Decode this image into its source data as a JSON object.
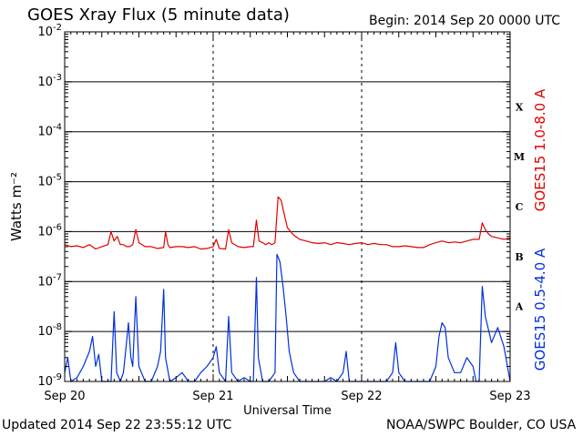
{
  "header": {
    "title": "GOES Xray Flux (5 minute data)",
    "begin": "Begin:  2014 Sep 20 0000 UTC"
  },
  "footer": {
    "updated": "Updated 2014 Sep 22 23:55:12 UTC",
    "credit": "NOAA/SWPC Boulder, CO USA"
  },
  "chart_data": {
    "type": "line",
    "title": "GOES Xray Flux (5 minute data)",
    "xlabel": "Universal Time",
    "ylabel": "Watts m⁻²",
    "yscale": "log",
    "ylim": [
      1e-09,
      0.01
    ],
    "xlim": [
      0,
      72
    ],
    "x_unit": "hours since 2014 Sep 20 0000 UTC",
    "x_ticks": [
      {
        "value": 0,
        "label": "Sep 20"
      },
      {
        "value": 24,
        "label": "Sep 21"
      },
      {
        "value": 48,
        "label": "Sep 22"
      },
      {
        "value": 72,
        "label": "Sep 23"
      }
    ],
    "y_ticks": [
      {
        "value": 1e-09,
        "base": "10",
        "exp": "-9"
      },
      {
        "value": 1e-08,
        "base": "10",
        "exp": "-8"
      },
      {
        "value": 1e-07,
        "base": "10",
        "exp": "-7"
      },
      {
        "value": 1e-06,
        "base": "10",
        "exp": "-6"
      },
      {
        "value": 1e-05,
        "base": "10",
        "exp": "-5"
      },
      {
        "value": 0.0001,
        "base": "10",
        "exp": "-4"
      },
      {
        "value": 0.001,
        "base": "10",
        "exp": "-3"
      },
      {
        "value": 0.01,
        "base": "10",
        "exp": "-2"
      }
    ],
    "flare_classes": [
      {
        "label": "A",
        "min": 1e-08,
        "max": 1e-07
      },
      {
        "label": "B",
        "min": 1e-07,
        "max": 1e-06
      },
      {
        "label": "C",
        "min": 1e-06,
        "max": 1e-05
      },
      {
        "label": "M",
        "min": 1e-05,
        "max": 0.0001
      },
      {
        "label": "X",
        "min": 0.0001,
        "max": 0.001
      }
    ],
    "grid": true,
    "series": [
      {
        "name": "GOES15 1.0-8.0 A",
        "color": "#e00000",
        "points": [
          [
            0,
            5.5e-07
          ],
          [
            1,
            5e-07
          ],
          [
            2,
            5.2e-07
          ],
          [
            3,
            4.8e-07
          ],
          [
            4,
            5.5e-07
          ],
          [
            5,
            4.5e-07
          ],
          [
            6,
            5e-07
          ],
          [
            7,
            5.5e-07
          ],
          [
            7.5,
            1e-06
          ],
          [
            8,
            6.5e-07
          ],
          [
            8.5,
            8e-07
          ],
          [
            9,
            5.5e-07
          ],
          [
            9.5,
            5.5e-07
          ],
          [
            10,
            5e-07
          ],
          [
            10.5,
            5e-07
          ],
          [
            11,
            5.5e-07
          ],
          [
            11.5,
            1.1e-06
          ],
          [
            12,
            6e-07
          ],
          [
            13,
            5e-07
          ],
          [
            14,
            5e-07
          ],
          [
            15,
            4.6e-07
          ],
          [
            16,
            4.8e-07
          ],
          [
            16.3,
            1e-06
          ],
          [
            16.7,
            5.5e-07
          ],
          [
            17,
            4.8e-07
          ],
          [
            18,
            5e-07
          ],
          [
            19,
            5e-07
          ],
          [
            20,
            4.8e-07
          ],
          [
            21,
            5e-07
          ],
          [
            22,
            4.5e-07
          ],
          [
            23,
            4.6e-07
          ],
          [
            24,
            5e-07
          ],
          [
            24.5,
            7e-07
          ],
          [
            25,
            4.6e-07
          ],
          [
            26,
            4.5e-07
          ],
          [
            26.5,
            1.1e-06
          ],
          [
            27,
            6e-07
          ],
          [
            28,
            5e-07
          ],
          [
            29,
            4.8e-07
          ],
          [
            30,
            5e-07
          ],
          [
            30.5,
            5e-07
          ],
          [
            31,
            1.7e-06
          ],
          [
            31.4,
            6.5e-07
          ],
          [
            32,
            6e-07
          ],
          [
            32.5,
            5.5e-07
          ],
          [
            33,
            6e-07
          ],
          [
            33.5,
            5.5e-07
          ],
          [
            34,
            6e-07
          ],
          [
            34.5,
            5e-06
          ],
          [
            35,
            4.2e-06
          ],
          [
            35.5,
            2.2e-06
          ],
          [
            36,
            1.2e-06
          ],
          [
            37,
            8.5e-07
          ],
          [
            38,
            7e-07
          ],
          [
            39,
            6.5e-07
          ],
          [
            40,
            6e-07
          ],
          [
            41,
            5.8e-07
          ],
          [
            42,
            6e-07
          ],
          [
            43,
            5.5e-07
          ],
          [
            44,
            6e-07
          ],
          [
            45,
            5.8e-07
          ],
          [
            46,
            5.5e-07
          ],
          [
            47,
            5.8e-07
          ],
          [
            48,
            6e-07
          ],
          [
            49,
            5.5e-07
          ],
          [
            50,
            5.8e-07
          ],
          [
            51,
            5.5e-07
          ],
          [
            52,
            5.5e-07
          ],
          [
            53,
            5e-07
          ],
          [
            54,
            5e-07
          ],
          [
            55,
            5.2e-07
          ],
          [
            56,
            5e-07
          ],
          [
            57,
            4.8e-07
          ],
          [
            58,
            4.8e-07
          ],
          [
            59,
            5.5e-07
          ],
          [
            60,
            6e-07
          ],
          [
            61,
            6.5e-07
          ],
          [
            62,
            6e-07
          ],
          [
            63,
            6.2e-07
          ],
          [
            64,
            6e-07
          ],
          [
            65,
            6.5e-07
          ],
          [
            66,
            7e-07
          ],
          [
            67,
            7e-07
          ],
          [
            67.5,
            1.5e-06
          ],
          [
            68,
            1.1e-06
          ],
          [
            68.5,
            9e-07
          ],
          [
            69,
            8e-07
          ],
          [
            70,
            7.5e-07
          ],
          [
            71,
            7e-07
          ],
          [
            72,
            7.5e-07
          ]
        ]
      },
      {
        "name": "GOES15 0.5-4.0 A",
        "color": "#0030e0",
        "points": [
          [
            0,
            1.5e-09
          ],
          [
            0.5,
            3e-09
          ],
          [
            1,
            1e-09
          ],
          [
            2,
            1.2e-09
          ],
          [
            3,
            2e-09
          ],
          [
            4,
            4e-09
          ],
          [
            4.5,
            8e-09
          ],
          [
            5,
            2e-09
          ],
          [
            5.5,
            3.5e-09
          ],
          [
            6,
            1e-09
          ],
          [
            7,
            1e-09
          ],
          [
            7.5,
            1e-09
          ],
          [
            8,
            2.5e-08
          ],
          [
            8.4,
            1.5e-09
          ],
          [
            9,
            1e-09
          ],
          [
            9.5,
            1.5e-09
          ],
          [
            10,
            6e-09
          ],
          [
            10.3,
            1.5e-08
          ],
          [
            10.7,
            3e-09
          ],
          [
            11,
            2e-09
          ],
          [
            11.5,
            5e-08
          ],
          [
            12,
            2e-09
          ],
          [
            13,
            1e-09
          ],
          [
            14,
            1e-09
          ],
          [
            15,
            2e-09
          ],
          [
            15.5,
            4e-09
          ],
          [
            16,
            7e-08
          ],
          [
            16.3,
            3e-09
          ],
          [
            17,
            1e-09
          ],
          [
            18,
            1.2e-09
          ],
          [
            19,
            1.5e-09
          ],
          [
            20,
            1e-09
          ],
          [
            21,
            1e-09
          ],
          [
            22,
            1.5e-09
          ],
          [
            23,
            2e-09
          ],
          [
            24,
            3e-09
          ],
          [
            24.5,
            5e-09
          ],
          [
            25,
            1.5e-09
          ],
          [
            26,
            1e-09
          ],
          [
            26.5,
            2e-08
          ],
          [
            27,
            1.5e-09
          ],
          [
            28,
            1e-09
          ],
          [
            29,
            1.2e-09
          ],
          [
            30,
            1e-09
          ],
          [
            30.5,
            1e-09
          ],
          [
            31,
            1.2e-07
          ],
          [
            31.3,
            3e-09
          ],
          [
            32,
            1e-09
          ],
          [
            33,
            1e-09
          ],
          [
            34,
            1.5e-09
          ],
          [
            34.3,
            3.5e-07
          ],
          [
            34.8,
            2.5e-07
          ],
          [
            35.3,
            8e-08
          ],
          [
            35.8,
            2e-08
          ],
          [
            36.3,
            4e-09
          ],
          [
            37,
            1.5e-09
          ],
          [
            38,
            1e-09
          ],
          [
            39,
            1e-09
          ],
          [
            40,
            1e-09
          ],
          [
            41,
            1e-09
          ],
          [
            42,
            1e-09
          ],
          [
            43,
            1.2e-09
          ],
          [
            44,
            1e-09
          ],
          [
            45,
            1.5e-09
          ],
          [
            45.5,
            4e-09
          ],
          [
            46,
            1e-09
          ],
          [
            47,
            1e-09
          ],
          [
            48,
            1e-09
          ],
          [
            49,
            1e-09
          ],
          [
            50,
            1e-09
          ],
          [
            51,
            1e-09
          ],
          [
            52,
            1e-09
          ],
          [
            53,
            1.5e-09
          ],
          [
            53.5,
            6e-09
          ],
          [
            54,
            1.5e-09
          ],
          [
            55,
            1e-09
          ],
          [
            56,
            1e-09
          ],
          [
            57,
            1e-09
          ],
          [
            58,
            1e-09
          ],
          [
            59,
            1e-09
          ],
          [
            60,
            2e-09
          ],
          [
            60.5,
            8e-09
          ],
          [
            61,
            1.5e-08
          ],
          [
            61.5,
            1.2e-08
          ],
          [
            62,
            3e-09
          ],
          [
            63,
            1.5e-09
          ],
          [
            64,
            1.5e-09
          ],
          [
            65,
            3e-09
          ],
          [
            66,
            2e-09
          ],
          [
            66.5,
            1e-09
          ],
          [
            67,
            1e-09
          ],
          [
            67.5,
            8e-08
          ],
          [
            68,
            2e-08
          ],
          [
            69,
            6e-09
          ],
          [
            70,
            1.2e-08
          ],
          [
            71,
            5e-09
          ],
          [
            72,
            1e-09
          ]
        ]
      }
    ]
  }
}
